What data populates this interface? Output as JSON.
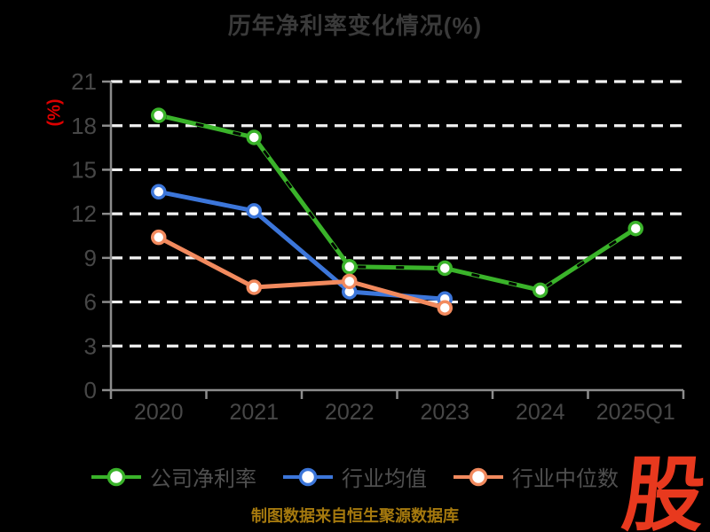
{
  "title": "历年净利率变化情况(%)",
  "footer": {
    "text": "制图数据来自恒生聚源数据库"
  },
  "logo": {
    "text": "股"
  },
  "colors": {
    "background": "#000000",
    "grid": "#f2f2f2",
    "axis": "#8c8c8c",
    "tick_label": "#474747",
    "title": "#3a3a3a",
    "legend_text": "#4f4f4f",
    "ylabel": "#dd0000",
    "footer": "#a5790e",
    "logo": "#e8391e",
    "marker_fill": "#ffffff",
    "company": "#3ab32a",
    "industry_mean": "#3c76da",
    "industry_median": "#f28a5e"
  },
  "chart_data": {
    "type": "line",
    "title": "历年净利率变化情况(%)",
    "xlabel": "",
    "ylabel": "(%)",
    "categories": [
      "2020",
      "2021",
      "2022",
      "2023",
      "2024",
      "2025Q1"
    ],
    "series": [
      {
        "id": "company-net-margin",
        "name": "公司净利率",
        "color": "#3ab32a",
        "dashed_overlay": true,
        "values": [
          18.7,
          17.2,
          8.4,
          8.3,
          6.8,
          11.0
        ]
      },
      {
        "id": "industry-mean",
        "name": "行业均值",
        "color": "#3c76da",
        "dashed_overlay": false,
        "values": [
          13.5,
          12.2,
          6.7,
          6.2,
          null,
          null
        ]
      },
      {
        "id": "industry-median",
        "name": "行业中位数",
        "color": "#f28a5e",
        "dashed_overlay": false,
        "values": [
          10.4,
          7.0,
          7.4,
          5.6,
          null,
          null
        ]
      }
    ],
    "yticks": [
      0,
      3,
      6,
      9,
      12,
      15,
      18,
      21
    ],
    "ylim": [
      0,
      21
    ],
    "grid": true,
    "grid_style": "dashed",
    "legend_position": "bottom"
  }
}
